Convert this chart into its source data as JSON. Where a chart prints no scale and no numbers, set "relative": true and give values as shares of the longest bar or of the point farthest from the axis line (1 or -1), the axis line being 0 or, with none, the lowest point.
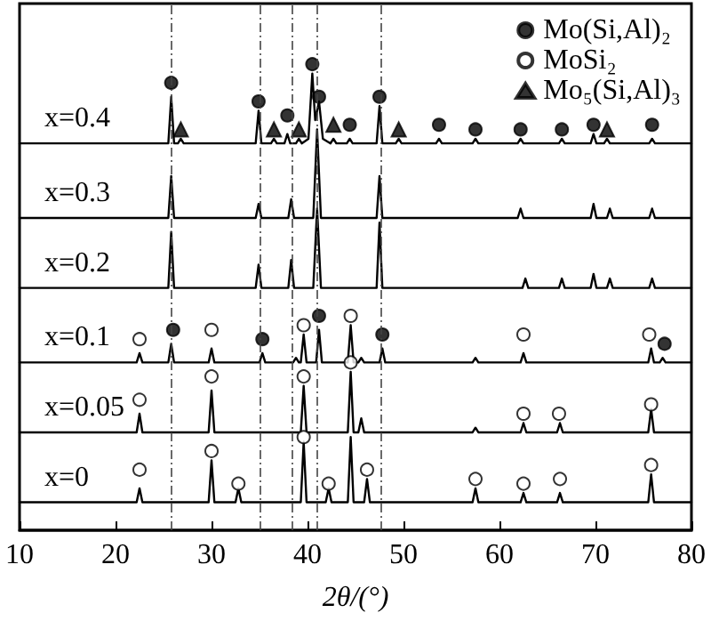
{
  "chart_data": {
    "type": "line",
    "relative": true,
    "xlabel": "2θ/(°)",
    "xlim": [
      10,
      80
    ],
    "xticks": [
      10,
      20,
      30,
      40,
      50,
      60,
      70,
      80
    ],
    "grid": false,
    "legend": "top right",
    "marker": "none",
    "line_style": "solid",
    "ref_lines": [
      {
        "axis": "x",
        "value": 25.8,
        "color": "#444444",
        "line_style": "dashed"
      },
      {
        "axis": "x",
        "value": 35.1,
        "color": "#444444",
        "line_style": "dashed"
      },
      {
        "axis": "x",
        "value": 38.4,
        "color": "#444444",
        "line_style": "dashed"
      },
      {
        "axis": "x",
        "value": 41.0,
        "color": "#444444",
        "line_style": "dashed"
      },
      {
        "axis": "x",
        "value": 47.6,
        "color": "#444444",
        "line_style": "dashed"
      }
    ],
    "series": [
      {
        "name": "x=0.4",
        "color": "#000000",
        "x": [
          10,
          25.5,
          25.8,
          26.1,
          26.5,
          26.8,
          27.1,
          34.6,
          34.9,
          35.2,
          36.2,
          36.5,
          36.8,
          37.6,
          37.9,
          38.2,
          38.8,
          39.1,
          39.4,
          40.1,
          40.5,
          40.8,
          41.2,
          41.6,
          42.4,
          42.7,
          43.0,
          44.1,
          44.4,
          44.7,
          47.2,
          47.5,
          47.8,
          49.2,
          49.5,
          49.8,
          53.4,
          53.7,
          54.0,
          57.2,
          57.5,
          57.8,
          61.9,
          62.2,
          62.5,
          66.2,
          66.5,
          66.8,
          69.5,
          69.8,
          70.1,
          70.9,
          71.2,
          71.5,
          75.6,
          75.9,
          76.2,
          80
        ],
        "values": [
          0.83,
          0.83,
          0.93,
          0.83,
          0.83,
          0.84,
          0.83,
          0.83,
          0.9,
          0.83,
          0.83,
          0.84,
          0.83,
          0.83,
          0.85,
          0.83,
          0.83,
          0.84,
          0.83,
          0.84,
          0.98,
          0.88,
          0.92,
          0.84,
          0.83,
          0.84,
          0.83,
          0.83,
          0.84,
          0.83,
          0.83,
          0.91,
          0.83,
          0.83,
          0.84,
          0.83,
          0.83,
          0.84,
          0.83,
          0.83,
          0.84,
          0.83,
          0.83,
          0.84,
          0.83,
          0.83,
          0.84,
          0.83,
          0.83,
          0.85,
          0.83,
          0.83,
          0.84,
          0.83,
          0.83,
          0.84,
          0.83,
          0.83
        ]
      },
      {
        "name": "x=0.3",
        "color": "#000000",
        "x": [
          10,
          25.5,
          25.8,
          26.1,
          34.6,
          34.9,
          35.2,
          38.0,
          38.3,
          38.6,
          40.6,
          41.0,
          41.4,
          47.2,
          47.5,
          47.8,
          61.9,
          62.2,
          62.5,
          69.5,
          69.8,
          70.1,
          71.2,
          71.5,
          71.8,
          75.6,
          75.9,
          76.2,
          80
        ],
        "values": [
          0.67,
          0.67,
          0.76,
          0.67,
          0.67,
          0.7,
          0.67,
          0.67,
          0.71,
          0.67,
          0.67,
          0.86,
          0.67,
          0.67,
          0.76,
          0.67,
          0.67,
          0.69,
          0.67,
          0.67,
          0.7,
          0.67,
          0.67,
          0.69,
          0.67,
          0.67,
          0.69,
          0.67,
          0.67
        ]
      },
      {
        "name": "x=0.2",
        "color": "#000000",
        "x": [
          10,
          25.5,
          25.8,
          26.1,
          34.6,
          34.9,
          35.2,
          38.0,
          38.3,
          38.6,
          40.6,
          41.0,
          41.4,
          47.2,
          47.5,
          47.8,
          62.4,
          62.7,
          63.0,
          66.2,
          66.5,
          66.8,
          69.5,
          69.8,
          70.1,
          71.2,
          71.5,
          71.8,
          75.6,
          75.9,
          76.2,
          80
        ],
        "values": [
          0.52,
          0.52,
          0.64,
          0.52,
          0.52,
          0.57,
          0.52,
          0.52,
          0.58,
          0.52,
          0.52,
          0.69,
          0.52,
          0.52,
          0.66,
          0.52,
          0.52,
          0.54,
          0.52,
          0.52,
          0.54,
          0.52,
          0.52,
          0.55,
          0.52,
          0.52,
          0.54,
          0.52,
          0.52,
          0.54,
          0.52,
          0.52
        ]
      },
      {
        "name": "x=0.1",
        "color": "#000000",
        "x": [
          10,
          22.2,
          22.5,
          22.8,
          25.5,
          25.8,
          26.1,
          29.7,
          30.0,
          30.3,
          35.0,
          35.3,
          35.6,
          38.5,
          38.8,
          39.1,
          39.3,
          39.6,
          39.9,
          40.9,
          41.2,
          41.5,
          44.2,
          44.5,
          44.8,
          45.3,
          45.6,
          45.9,
          47.5,
          47.8,
          48.1,
          57.2,
          57.5,
          57.8,
          62.2,
          62.5,
          62.8,
          75.5,
          75.8,
          76.1,
          76.7,
          77.0,
          77.3,
          80
        ],
        "values": [
          0.36,
          0.36,
          0.38,
          0.36,
          0.36,
          0.4,
          0.36,
          0.36,
          0.39,
          0.36,
          0.36,
          0.38,
          0.36,
          0.36,
          0.37,
          0.36,
          0.36,
          0.42,
          0.36,
          0.36,
          0.43,
          0.36,
          0.36,
          0.44,
          0.36,
          0.36,
          0.37,
          0.36,
          0.36,
          0.39,
          0.36,
          0.36,
          0.37,
          0.36,
          0.36,
          0.38,
          0.36,
          0.36,
          0.39,
          0.36,
          0.36,
          0.37,
          0.36,
          0.36
        ]
      },
      {
        "name": "x=0.05",
        "color": "#000000",
        "x": [
          10,
          22.2,
          22.5,
          22.8,
          29.7,
          30.0,
          30.3,
          39.3,
          39.6,
          39.9,
          44.2,
          44.5,
          44.8,
          45.3,
          45.6,
          45.9,
          57.2,
          57.5,
          57.8,
          62.2,
          62.5,
          62.8,
          66.0,
          66.3,
          66.6,
          75.5,
          75.8,
          76.1,
          80
        ],
        "values": [
          0.21,
          0.21,
          0.25,
          0.21,
          0.21,
          0.3,
          0.21,
          0.21,
          0.31,
          0.21,
          0.21,
          0.34,
          0.21,
          0.21,
          0.24,
          0.21,
          0.21,
          0.22,
          0.21,
          0.21,
          0.23,
          0.21,
          0.21,
          0.23,
          0.21,
          0.21,
          0.26,
          0.21,
          0.21
        ]
      },
      {
        "name": "x=0",
        "color": "#000000",
        "x": [
          10,
          22.2,
          22.5,
          22.8,
          29.7,
          30.0,
          30.3,
          32.5,
          32.8,
          33.1,
          39.3,
          39.6,
          39.9,
          41.9,
          42.2,
          42.5,
          44.2,
          44.5,
          44.8,
          45.9,
          46.2,
          46.5,
          57.2,
          57.5,
          57.8,
          62.2,
          62.5,
          62.8,
          66.0,
          66.3,
          66.6,
          75.5,
          75.8,
          76.1,
          80
        ],
        "values": [
          0.06,
          0.06,
          0.09,
          0.06,
          0.06,
          0.15,
          0.06,
          0.06,
          0.09,
          0.06,
          0.06,
          0.19,
          0.06,
          0.06,
          0.09,
          0.06,
          0.06,
          0.2,
          0.06,
          0.06,
          0.11,
          0.06,
          0.06,
          0.09,
          0.06,
          0.06,
          0.08,
          0.06,
          0.06,
          0.08,
          0.06,
          0.06,
          0.12,
          0.06,
          0.06
        ]
      },
      {
        "name": "Mo(Si,Al)₂",
        "type": "scatter",
        "marker": "circle",
        "color": "#000000",
        "x": [
          25.8,
          34.9,
          37.9,
          40.5,
          41.2,
          44.4,
          47.5,
          53.7,
          57.5,
          62.2,
          66.5,
          69.8,
          75.9,
          26.0,
          35.3,
          41.2,
          47.8,
          77.2
        ],
        "values": [
          0.96,
          0.92,
          0.89,
          1,
          0.93,
          0.87,
          0.93,
          0.87,
          0.86,
          0.86,
          0.86,
          0.87,
          0.87,
          0.43,
          0.41,
          0.46,
          0.42,
          0.4
        ]
      },
      {
        "name": "MoSi₂",
        "type": "scatter",
        "marker": "circle",
        "color": "#ffffff",
        "x": [
          22.5,
          30,
          39.6,
          44.5,
          62.5,
          75.6,
          22.5,
          30,
          39.6,
          44.5,
          62.5,
          66.2,
          75.8,
          22.5,
          30,
          32.8,
          39.6,
          42.2,
          46.2,
          57.5,
          62.5,
          66.3,
          75.8
        ],
        "values": [
          0.41,
          0.43,
          0.44,
          0.46,
          0.42,
          0.42,
          0.28,
          0.33,
          0.33,
          0.36,
          0.25,
          0.25,
          0.27,
          0.13,
          0.17,
          0.1,
          0.2,
          0.1,
          0.13,
          0.11,
          0.1,
          0.11,
          0.14
        ]
      },
      {
        "name": "Mo₅(Si,Al)₃",
        "type": "scatter",
        "marker": "triangle",
        "color": "#000000",
        "x": [
          26.8,
          36.5,
          39.1,
          42.7,
          49.5,
          71.2
        ],
        "values": [
          0.86,
          0.86,
          0.86,
          0.87,
          0.86,
          0.86
        ]
      }
    ]
  }
}
